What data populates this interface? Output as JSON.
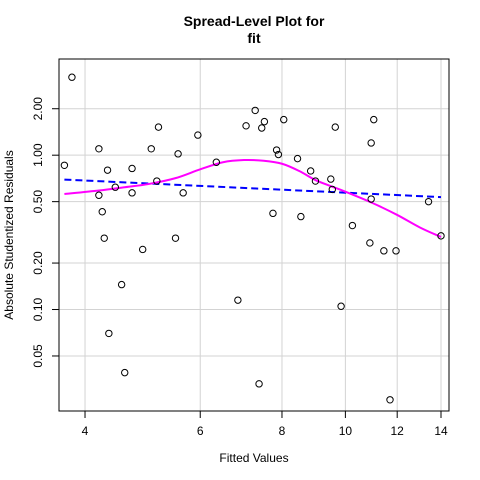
{
  "chart_data": {
    "type": "scatter",
    "title": "Spread-Level Plot for",
    "subtitle": "fit",
    "xlabel": "Fitted Values",
    "ylabel": "Absolute Studentized Residuals",
    "x_scale": "log",
    "y_scale": "log",
    "xlim": [
      3.65,
      14.4
    ],
    "ylim": [
      0.022,
      4.2
    ],
    "x_ticks": [
      4,
      6,
      8,
      10,
      12,
      14
    ],
    "y_ticks": [
      0.05,
      0.1,
      0.2,
      0.5,
      1.0,
      2.0
    ],
    "x_tick_labels": [
      "4",
      "6",
      "8",
      "10",
      "12",
      "14"
    ],
    "y_tick_labels": [
      "0.05",
      "0.10",
      "0.20",
      "0.50",
      "1.00",
      "2.00"
    ],
    "grid": true,
    "points_color": "#000000",
    "smooth_color": "#ff00ff",
    "fit_color": "#0000ff",
    "points": [
      [
        3.72,
        0.86
      ],
      [
        3.82,
        3.2
      ],
      [
        4.2,
        1.1
      ],
      [
        4.2,
        0.55
      ],
      [
        4.25,
        0.43
      ],
      [
        4.28,
        0.29
      ],
      [
        4.33,
        0.8
      ],
      [
        4.35,
        0.07
      ],
      [
        4.45,
        0.62
      ],
      [
        4.55,
        0.145
      ],
      [
        4.6,
        0.039
      ],
      [
        4.72,
        0.82
      ],
      [
        4.72,
        0.57
      ],
      [
        4.9,
        0.245
      ],
      [
        5.05,
        1.1
      ],
      [
        5.15,
        0.68
      ],
      [
        5.18,
        1.52
      ],
      [
        5.5,
        0.29
      ],
      [
        5.55,
        1.02
      ],
      [
        5.65,
        0.57
      ],
      [
        5.95,
        1.35
      ],
      [
        6.35,
        0.9
      ],
      [
        6.85,
        0.115
      ],
      [
        7.05,
        1.55
      ],
      [
        7.28,
        1.95
      ],
      [
        7.38,
        0.033
      ],
      [
        7.45,
        1.5
      ],
      [
        7.52,
        1.65
      ],
      [
        7.75,
        0.42
      ],
      [
        7.85,
        1.08
      ],
      [
        7.9,
        1.01
      ],
      [
        8.05,
        1.7
      ],
      [
        8.45,
        0.95
      ],
      [
        8.55,
        0.4
      ],
      [
        8.85,
        0.79
      ],
      [
        9.0,
        0.68
      ],
      [
        9.5,
        0.7
      ],
      [
        9.55,
        0.6
      ],
      [
        9.65,
        1.52
      ],
      [
        9.85,
        0.105
      ],
      [
        10.25,
        0.35
      ],
      [
        10.9,
        0.27
      ],
      [
        10.95,
        1.2
      ],
      [
        10.95,
        0.52
      ],
      [
        11.05,
        1.7
      ],
      [
        11.45,
        0.24
      ],
      [
        11.7,
        0.026
      ],
      [
        11.95,
        0.24
      ],
      [
        13.4,
        0.5
      ],
      [
        14.0,
        0.3
      ]
    ],
    "smooth": {
      "name": "",
      "x": [
        3.72,
        4.2,
        4.6,
        5.0,
        5.5,
        6.0,
        6.5,
        7.0,
        7.5,
        8.0,
        8.5,
        9.0,
        9.5,
        10.0,
        11.0,
        12.0,
        13.0,
        14.0
      ],
      "y": [
        0.56,
        0.59,
        0.62,
        0.65,
        0.71,
        0.81,
        0.9,
        0.93,
        0.92,
        0.88,
        0.79,
        0.69,
        0.63,
        0.58,
        0.49,
        0.41,
        0.34,
        0.295
      ]
    },
    "fit_line": {
      "name": "",
      "x": [
        3.72,
        14.0
      ],
      "y": [
        0.695,
        0.535
      ]
    }
  }
}
